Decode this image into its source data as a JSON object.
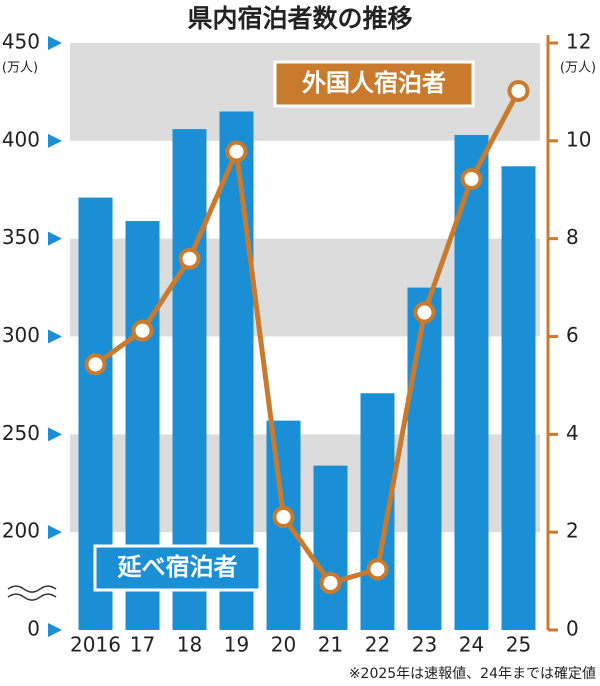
{
  "chart_data": {
    "type": "combo",
    "title": "県内宿泊者数の推移",
    "footnote": "※2025年は速報値、24年までは確定値",
    "y_unit": "(万人)",
    "y2_unit": "(万人)",
    "categories": [
      "2016",
      "17",
      "18",
      "19",
      "20",
      "21",
      "22",
      "23",
      "24",
      "25"
    ],
    "series": [
      {
        "name": "延べ宿泊者",
        "type": "bar",
        "axis": "y",
        "color": "#1b8fd6",
        "values": [
          371,
          359,
          406,
          415,
          257,
          234,
          271,
          325,
          403,
          387
        ]
      },
      {
        "name": "外国人宿泊者",
        "type": "line",
        "axis": "y2",
        "color": "#c97a2c",
        "values": [
          5.43,
          6.12,
          7.59,
          9.78,
          2.31,
          0.96,
          1.24,
          6.49,
          9.22,
          11.02
        ]
      }
    ],
    "ylim": [
      0,
      450
    ],
    "yticks": [
      0,
      200,
      250,
      300,
      350,
      400,
      450
    ],
    "y_break": [
      0,
      200
    ],
    "y2lim": [
      0,
      12
    ],
    "y2ticks": [
      0,
      2,
      4,
      6,
      8,
      10,
      12
    ],
    "grid_bands": true
  }
}
